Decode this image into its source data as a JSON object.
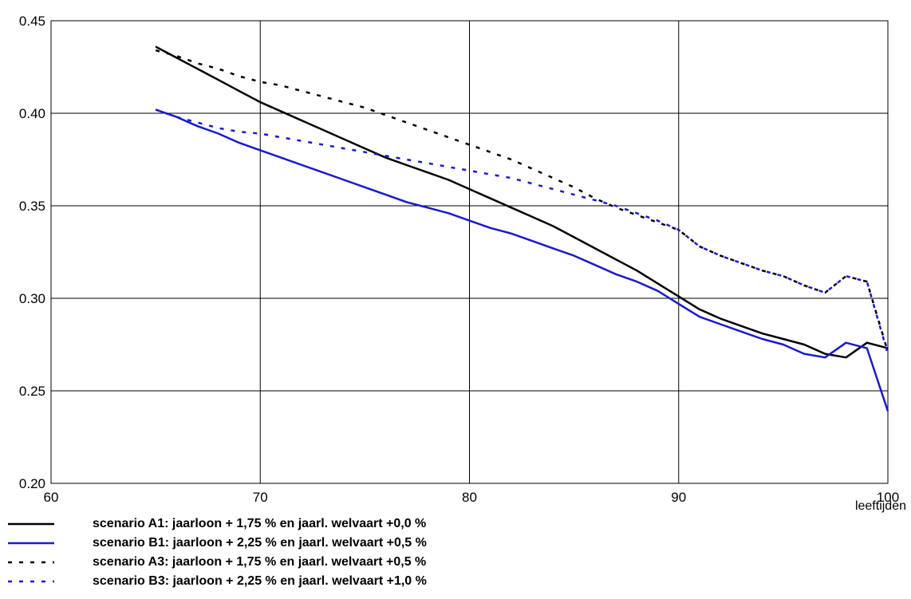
{
  "chart_data": {
    "type": "line",
    "xlabel": "leeftijden",
    "ylabel": "",
    "xlim": [
      60,
      100
    ],
    "ylim": [
      0.2,
      0.45
    ],
    "x_ticks": [
      "60",
      "70",
      "80",
      "90",
      "100"
    ],
    "y_ticks": [
      "0.20",
      "0.25",
      "0.30",
      "0.35",
      "0.40",
      "0.45"
    ],
    "grid": true,
    "legend_position": "bottom",
    "series": [
      {
        "name": "scenario A1: jaarloon + 1,75 % en jaarl. welvaart +0,0 %",
        "color": "#000000",
        "style": "solid",
        "x": [
          65,
          66,
          67,
          68,
          69,
          70,
          71,
          72,
          73,
          74,
          75,
          76,
          77,
          78,
          79,
          80,
          81,
          82,
          83,
          84,
          85,
          86,
          87,
          88,
          89,
          90,
          91,
          92,
          93,
          94,
          95,
          96,
          97,
          98,
          99,
          100
        ],
        "y": [
          0.436,
          0.43,
          0.424,
          0.418,
          0.412,
          0.406,
          0.401,
          0.396,
          0.391,
          0.386,
          0.381,
          0.376,
          0.372,
          0.368,
          0.364,
          0.359,
          0.354,
          0.349,
          0.344,
          0.339,
          0.333,
          0.327,
          0.321,
          0.315,
          0.308,
          0.301,
          0.294,
          0.289,
          0.285,
          0.281,
          0.278,
          0.275,
          0.27,
          0.268,
          0.276,
          0.273
        ]
      },
      {
        "name": "scenario B1: jaarloon + 2,25 % en jaarl. welvaart +0,5 %",
        "color": "#1a1acc",
        "style": "solid",
        "x": [
          65,
          66,
          67,
          68,
          69,
          70,
          71,
          72,
          73,
          74,
          75,
          76,
          77,
          78,
          79,
          80,
          81,
          82,
          83,
          84,
          85,
          86,
          87,
          88,
          89,
          90,
          91,
          92,
          93,
          94,
          95,
          96,
          97,
          98,
          99,
          100
        ],
        "y": [
          0.402,
          0.398,
          0.393,
          0.389,
          0.384,
          0.38,
          0.376,
          0.372,
          0.368,
          0.364,
          0.36,
          0.356,
          0.352,
          0.349,
          0.346,
          0.342,
          0.338,
          0.335,
          0.331,
          0.327,
          0.323,
          0.318,
          0.313,
          0.309,
          0.304,
          0.297,
          0.29,
          0.286,
          0.282,
          0.278,
          0.275,
          0.27,
          0.268,
          0.276,
          0.273,
          0.239
        ]
      },
      {
        "name": "scenario A3: jaarloon + 1,75 % en jaarl. welvaart +0,5 %",
        "color": "#000000",
        "style": "dashed",
        "x": [
          65,
          66,
          67,
          68,
          69,
          70,
          71,
          72,
          73,
          74,
          75,
          76,
          77,
          78,
          79,
          80,
          81,
          82,
          83,
          84,
          85,
          86,
          87,
          88,
          89,
          90,
          91,
          92,
          93,
          94,
          95,
          96,
          97,
          98,
          99,
          100
        ],
        "y": [
          0.434,
          0.431,
          0.427,
          0.424,
          0.42,
          0.417,
          0.415,
          0.412,
          0.409,
          0.406,
          0.403,
          0.399,
          0.395,
          0.391,
          0.387,
          0.383,
          0.379,
          0.375,
          0.37,
          0.365,
          0.36,
          0.354,
          0.349,
          0.345,
          0.341,
          0.337,
          0.328,
          0.323,
          0.319,
          0.315,
          0.312,
          0.307,
          0.303,
          0.312,
          0.309,
          0.271
        ]
      },
      {
        "name": "scenario B3: jaarloon + 2,25 % en jaarl. welvaart +1,0 %",
        "color": "#1a1acc",
        "style": "dashed",
        "x": [
          65,
          66,
          67,
          68,
          69,
          70,
          71,
          72,
          73,
          74,
          75,
          76,
          77,
          78,
          79,
          80,
          81,
          82,
          83,
          84,
          85,
          86,
          87,
          88,
          89,
          90,
          91,
          92,
          93,
          94,
          95,
          96,
          97,
          98,
          99,
          100
        ],
        "y": [
          0.402,
          0.398,
          0.395,
          0.392,
          0.39,
          0.389,
          0.387,
          0.385,
          0.383,
          0.381,
          0.379,
          0.377,
          0.375,
          0.373,
          0.371,
          0.369,
          0.367,
          0.365,
          0.362,
          0.359,
          0.356,
          0.353,
          0.35,
          0.346,
          0.342,
          0.337,
          0.328,
          0.323,
          0.319,
          0.315,
          0.312,
          0.307,
          0.303,
          0.312,
          0.309,
          0.27
        ]
      }
    ]
  }
}
